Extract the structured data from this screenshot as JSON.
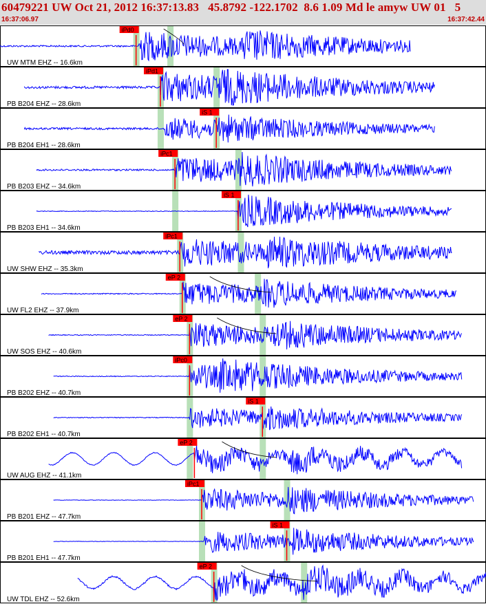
{
  "header": {
    "title": "60479221 UW Oct 21, 2012 16:37:13.83   45.8792 -122.1702  8.6 1.09 Md le amyw UW 01   5",
    "time_start": "16:37:06.97",
    "time_end": "16:37:42.44"
  },
  "colors": {
    "header_bg": "#dddddd",
    "header_text": "#c00000",
    "trace": "#0000ff",
    "pick_box": "#ff0000",
    "pick_band": "#b8e0b8",
    "theory_curve": "#000000"
  },
  "stations": [
    {
      "label": "UW MTM EHZ -- 16.6km",
      "pick": "iPd0",
      "amp": 1.0,
      "noise": 0.25,
      "start": 0.0,
      "end": 0.845,
      "onset": 0.285,
      "burst": 0.5,
      "wave": 0.0,
      "slow": false,
      "bands": [
        0.28,
        0.35
      ],
      "pick_x": 0.28,
      "curve": true
    },
    {
      "label": "PB B204 EHZ -- 28.6km",
      "pick": "iPd1",
      "amp": 1.0,
      "noise": 0.35,
      "start": 0.05,
      "end": 0.895,
      "onset": 0.33,
      "burst": 0.45,
      "wave": 0.0,
      "slow": false,
      "bands": [
        0.33,
        0.445
      ],
      "pick_x": 0.33,
      "curve": false
    },
    {
      "label": "PB B204 EH1 -- 28.6km",
      "pick": "iS 1",
      "amp": 0.7,
      "noise": 0.3,
      "start": 0.05,
      "end": 0.895,
      "onset": 0.34,
      "burst": 0.45,
      "wave": 0.0,
      "slow": false,
      "bands": [
        0.33,
        0.445
      ],
      "pick_x": 0.445,
      "curve": false
    },
    {
      "label": "PB B203 EHZ -- 34.6km",
      "pick": "iPc1",
      "amp": 0.9,
      "noise": 0.25,
      "start": 0.075,
      "end": 0.93,
      "onset": 0.36,
      "burst": 0.49,
      "wave": 0.0,
      "slow": false,
      "bands": [
        0.36,
        0.49
      ],
      "pick_x": 0.36,
      "curve": false
    },
    {
      "label": "PB B203 EH1 -- 34.6km",
      "pick": "iS 1",
      "amp": 0.7,
      "noise": 0.1,
      "start": 0.075,
      "end": 0.93,
      "onset": 0.49,
      "burst": 0.5,
      "wave": 0.0,
      "slow": false,
      "bands": [
        0.36,
        0.49
      ],
      "pick_x": 0.49,
      "curve": false
    },
    {
      "label": "UW SHW EHZ -- 35.3km",
      "pick": "iPc1",
      "amp": 0.9,
      "noise": 0.55,
      "start": 0.08,
      "end": 0.93,
      "onset": 0.37,
      "burst": 0.55,
      "wave": 0.0,
      "slow": false,
      "bands": [
        0.37,
        0.495
      ],
      "pick_x": 0.37,
      "curve": false
    },
    {
      "label": "UW FL2 EHZ -- 37.9km",
      "pick": "eP 2",
      "amp": 0.8,
      "noise": 0.15,
      "start": 0.085,
      "end": 0.94,
      "onset": 0.375,
      "burst": 0.54,
      "wave": 0.0,
      "slow": false,
      "bands": [
        0.375,
        0.53
      ],
      "pick_x": 0.375,
      "curve": true
    },
    {
      "label": "UW SOS EHZ -- 40.6km",
      "pick": "eP 2",
      "amp": 0.85,
      "noise": 0.12,
      "start": 0.1,
      "end": 0.95,
      "onset": 0.39,
      "burst": 0.56,
      "wave": 0.0,
      "slow": false,
      "bands": [
        0.39,
        0.54
      ],
      "pick_x": 0.39,
      "curve": true
    },
    {
      "label": "PB B202 EHZ -- 40.7km",
      "pick": "iPc0",
      "amp": 0.85,
      "noise": 0.12,
      "start": 0.11,
      "end": 0.95,
      "onset": 0.39,
      "burst": 0.45,
      "wave": 0.0,
      "slow": false,
      "bands": [
        0.39,
        0.54
      ],
      "pick_x": 0.39,
      "curve": false
    },
    {
      "label": "PB B202 EH1 -- 40.7km",
      "pick": "iS 1",
      "amp": 0.7,
      "noise": 0.12,
      "start": 0.11,
      "end": 0.95,
      "onset": 0.39,
      "burst": 0.54,
      "wave": 0.0,
      "slow": false,
      "bands": [
        0.39,
        0.54
      ],
      "pick_x": 0.54,
      "curve": false
    },
    {
      "label": "UW AUG EHZ -- 41.1km",
      "pick": "eP 2",
      "amp": 0.7,
      "noise": 0.12,
      "start": 0.1,
      "end": 0.95,
      "onset": 0.4,
      "burst": 0.6,
      "wave": 0.25,
      "slow": true,
      "bands": [
        0.39,
        0.54
      ],
      "pick_x": 0.4,
      "curve": true
    },
    {
      "label": "PB B201 EHZ -- 47.7km",
      "pick": "iPc1",
      "amp": 0.8,
      "noise": 0.07,
      "start": 0.11,
      "end": 0.975,
      "onset": 0.415,
      "burst": 0.59,
      "wave": 0.0,
      "slow": false,
      "bands": [
        0.415,
        0.59
      ],
      "pick_x": 0.415,
      "curve": false
    },
    {
      "label": "PB B201 EH1 -- 47.7km",
      "pick": "iS 1",
      "amp": 0.75,
      "noise": 0.07,
      "start": 0.11,
      "end": 0.975,
      "onset": 0.42,
      "burst": 0.6,
      "wave": 0.0,
      "slow": false,
      "bands": [
        0.415,
        0.59
      ],
      "pick_x": 0.59,
      "curve": false
    },
    {
      "label": "UW TDL EHZ -- 52.6km",
      "pick": "eP 2",
      "amp": 0.8,
      "noise": 0.25,
      "start": 0.16,
      "end": 1.0,
      "onset": 0.44,
      "burst": 0.62,
      "wave": 0.18,
      "slow": true,
      "bands": [
        0.44,
        0.625
      ],
      "pick_x": 0.44,
      "curve": true
    }
  ]
}
